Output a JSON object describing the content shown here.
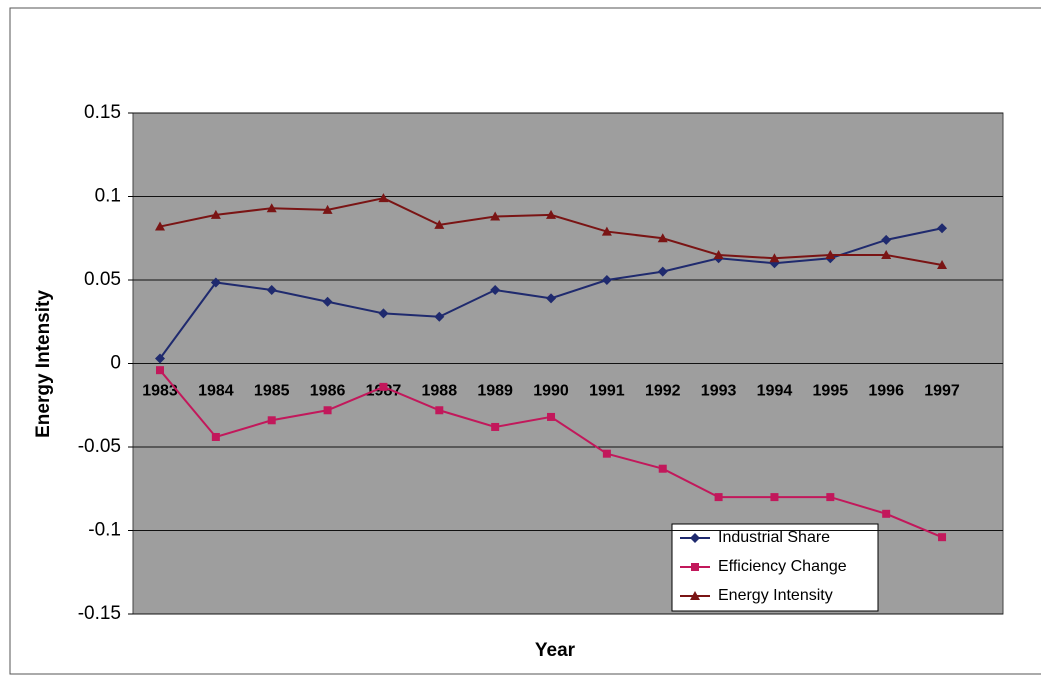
{
  "chart_data": {
    "type": "line",
    "x_label": "Year",
    "y_label": "Energy Intensity",
    "categories": [
      "1983",
      "1984",
      "1985",
      "1986",
      "1987",
      "1988",
      "1989",
      "1990",
      "1991",
      "1992",
      "1993",
      "1994",
      "1995",
      "1996",
      "1997"
    ],
    "ylim": [
      -0.15,
      0.15
    ],
    "yticks": [
      0.15,
      0.1,
      0.05,
      0,
      -0.05,
      -0.1,
      -0.15
    ],
    "grid": true,
    "legend": "lower right",
    "series": [
      {
        "name": "Industrial Share",
        "color": "#1f2a6e",
        "marker": "diamond",
        "values": [
          0.003,
          0.0485,
          0.044,
          0.037,
          0.03,
          0.028,
          0.044,
          0.039,
          0.05,
          0.055,
          0.063,
          0.06,
          0.063,
          0.074,
          0.081
        ]
      },
      {
        "name": "Efficiency Change",
        "color": "#c2185b",
        "marker": "square",
        "values": [
          -0.004,
          -0.044,
          -0.034,
          -0.028,
          -0.014,
          -0.028,
          -0.038,
          -0.032,
          -0.054,
          -0.063,
          -0.08,
          -0.08,
          -0.08,
          -0.09,
          -0.104
        ]
      },
      {
        "name": "Energy Intensity",
        "color": "#7a1414",
        "marker": "triangle",
        "values": [
          0.082,
          0.089,
          0.093,
          0.092,
          0.099,
          0.083,
          0.088,
          0.089,
          0.079,
          0.075,
          0.065,
          0.063,
          0.065,
          0.065,
          0.059
        ]
      }
    ]
  }
}
